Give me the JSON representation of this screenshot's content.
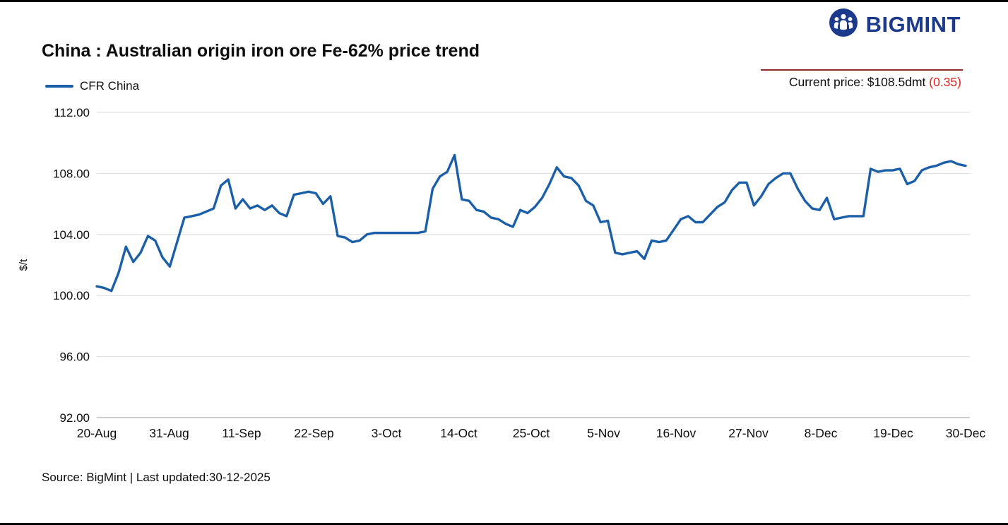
{
  "page": {
    "brand": "BIGMINT",
    "title": "China : Australian origin iron ore Fe-62% price trend",
    "legend_label": "CFR China",
    "current_price_text": "Current price: $108.5dmt ",
    "current_price_change": "(0.35)",
    "source_text": "Source: BigMint | Last updated:30-12-2025"
  },
  "colors": {
    "line": "#1b5fa8",
    "brand": "#1b3a8c",
    "change": "#e8201a",
    "price_rule": "#8e2a2a",
    "gridline": "#dcdcdc",
    "axis": "#9a9a9a"
  },
  "chart_data": {
    "type": "line",
    "title": "China : Australian origin iron ore Fe-62% price trend",
    "xlabel": "",
    "ylabel": "$/t",
    "ylim": [
      92,
      112
    ],
    "ytick_step": 4,
    "yticks": [
      "112.00",
      "108.00",
      "104.00",
      "100.00",
      "96.00",
      "92.00"
    ],
    "x_labels": [
      "20-Aug",
      "31-Aug",
      "11-Sep",
      "22-Sep",
      "3-Oct",
      "14-Oct",
      "25-Oct",
      "5-Nov",
      "16-Nov",
      "27-Nov",
      "8-Dec",
      "19-Dec",
      "30-Dec"
    ],
    "grid": "horizontal",
    "legend_position": "top-left",
    "series": [
      {
        "name": "CFR China",
        "values": [
          100.6,
          100.5,
          100.3,
          101.5,
          103.2,
          102.2,
          102.8,
          103.9,
          103.6,
          102.5,
          101.9,
          103.5,
          105.1,
          105.2,
          105.3,
          105.5,
          105.7,
          107.2,
          107.6,
          105.7,
          106.3,
          105.7,
          105.9,
          105.6,
          105.9,
          105.4,
          105.2,
          106.6,
          106.7,
          106.8,
          106.7,
          106.0,
          106.5,
          103.9,
          103.8,
          103.5,
          103.6,
          104.0,
          104.1,
          104.1,
          104.1,
          104.1,
          104.1,
          104.1,
          104.1,
          104.2,
          107.0,
          107.8,
          108.1,
          109.2,
          106.3,
          106.2,
          105.6,
          105.5,
          105.1,
          105.0,
          104.7,
          104.5,
          105.6,
          105.4,
          105.8,
          106.4,
          107.3,
          108.4,
          107.8,
          107.7,
          107.2,
          106.2,
          105.9,
          104.8,
          104.9,
          102.8,
          102.7,
          102.8,
          102.9,
          102.4,
          103.6,
          103.5,
          103.6,
          104.3,
          105.0,
          105.2,
          104.8,
          104.8,
          105.3,
          105.8,
          106.1,
          106.9,
          107.4,
          107.4,
          105.9,
          106.5,
          107.3,
          107.7,
          108.0,
          108.0,
          107.0,
          106.2,
          105.7,
          105.6,
          106.4,
          105.0,
          105.1,
          105.2,
          105.2,
          105.2,
          108.3,
          108.1,
          108.2,
          108.2,
          108.3,
          107.3,
          107.5,
          108.2,
          108.4,
          108.5,
          108.7,
          108.8,
          108.6,
          108.5
        ]
      }
    ]
  }
}
